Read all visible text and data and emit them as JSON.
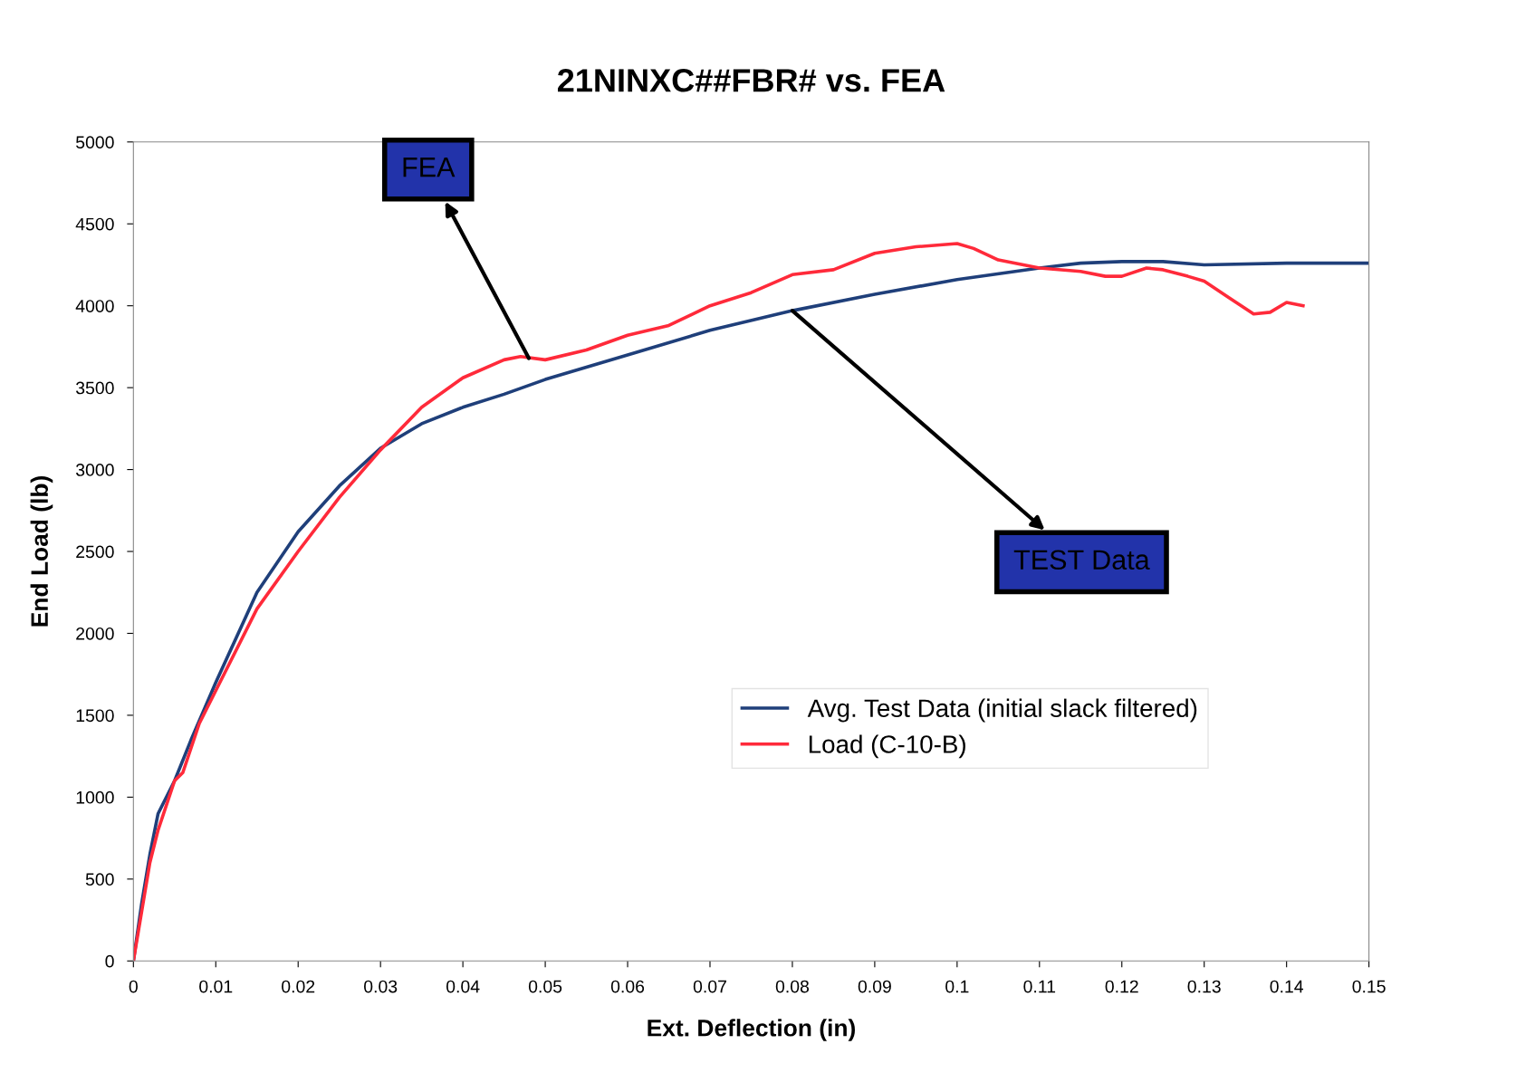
{
  "chart_data": {
    "type": "line",
    "title": "21NINXC##FBR# vs. FEA",
    "xlabel": "Ext. Deflection (in)",
    "ylabel": "End Load (lb)",
    "xlim": [
      0,
      0.15
    ],
    "xticks": [
      0,
      0.01,
      0.02,
      0.03,
      0.04,
      0.05,
      0.06,
      0.07,
      0.08,
      0.09,
      0.1,
      0.11,
      0.12,
      0.13,
      0.14,
      0.15
    ],
    "ylim": [
      0,
      5000
    ],
    "yticks": [
      0,
      500,
      1000,
      1500,
      2000,
      2500,
      3000,
      3500,
      4000,
      4500,
      5000
    ],
    "grid": false,
    "legend": "bottom right",
    "marker": "none",
    "line_style": "solid",
    "series": [
      {
        "name": "Avg. Test Data (initial slack filtered)",
        "color": "#1f3f7a",
        "x": [
          0,
          0.001,
          0.002,
          0.003,
          0.005,
          0.007,
          0.01,
          0.015,
          0.02,
          0.025,
          0.03,
          0.035,
          0.04,
          0.045,
          0.05,
          0.06,
          0.07,
          0.08,
          0.09,
          0.1,
          0.11,
          0.115,
          0.12,
          0.125,
          0.13,
          0.14,
          0.15
        ],
        "values": [
          0,
          350,
          650,
          900,
          1100,
          1350,
          1700,
          2250,
          2620,
          2900,
          3130,
          3280,
          3380,
          3460,
          3550,
          3700,
          3850,
          3970,
          4070,
          4160,
          4230,
          4260,
          4270,
          4270,
          4250,
          4260,
          4260
        ]
      },
      {
        "name": "Load (C-10-B)",
        "color": "#ff2a3a",
        "x": [
          0,
          0.001,
          0.002,
          0.003,
          0.005,
          0.006,
          0.008,
          0.01,
          0.015,
          0.02,
          0.025,
          0.03,
          0.035,
          0.04,
          0.045,
          0.047,
          0.05,
          0.055,
          0.06,
          0.065,
          0.07,
          0.075,
          0.08,
          0.085,
          0.09,
          0.095,
          0.1,
          0.102,
          0.105,
          0.11,
          0.115,
          0.118,
          0.12,
          0.123,
          0.125,
          0.128,
          0.13,
          0.133,
          0.136,
          0.138,
          0.14,
          0.142
        ],
        "values": [
          0,
          300,
          600,
          800,
          1100,
          1150,
          1450,
          1650,
          2150,
          2500,
          2830,
          3120,
          3380,
          3560,
          3670,
          3690,
          3670,
          3730,
          3820,
          3880,
          4000,
          4080,
          4190,
          4220,
          4320,
          4360,
          4380,
          4350,
          4280,
          4230,
          4210,
          4180,
          4180,
          4230,
          4220,
          4180,
          4150,
          4050,
          3950,
          3960,
          4020,
          4000
        ]
      }
    ],
    "annotations": [
      {
        "text": "FEA",
        "x": 0.048,
        "y": 3680
      },
      {
        "text": "TEST Data",
        "x": 0.08,
        "y": 3970
      }
    ]
  }
}
